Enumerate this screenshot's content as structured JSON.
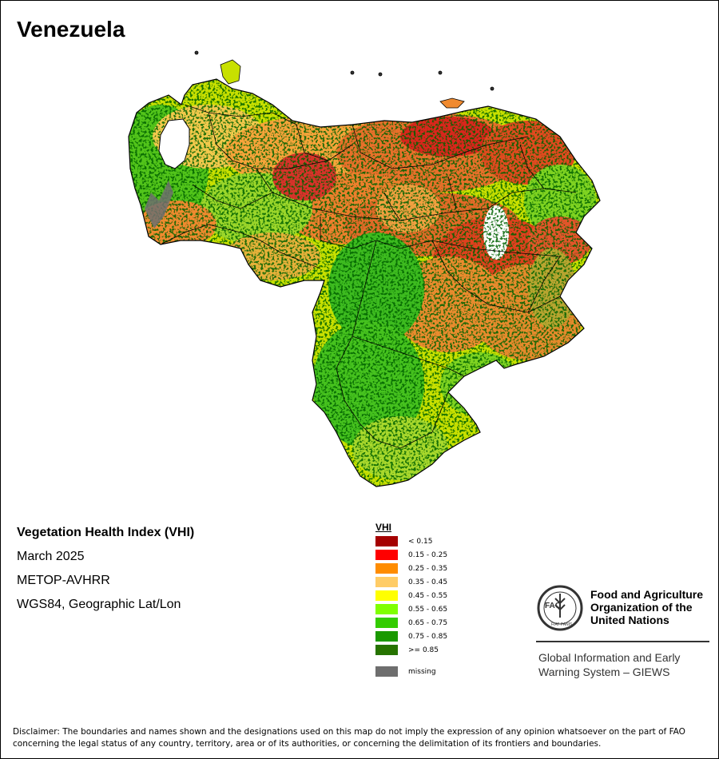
{
  "map": {
    "title": "Venezuela",
    "product": "Vegetation Health Index (VHI)",
    "period": "March 2025",
    "sensor": "METOP-AVHRR",
    "projection": "WGS84, Geographic Lat/Lon"
  },
  "legend": {
    "title": "VHI",
    "classes": [
      {
        "label": "< 0.15",
        "color": "#a50000"
      },
      {
        "label": "0.15 - 0.25",
        "color": "#ff0000"
      },
      {
        "label": "0.25 - 0.35",
        "color": "#ff8c00"
      },
      {
        "label": "0.35 - 0.45",
        "color": "#ffcc66"
      },
      {
        "label": "0.45 - 0.55",
        "color": "#ffff00"
      },
      {
        "label": "0.55 - 0.65",
        "color": "#80ff00"
      },
      {
        "label": "0.65 - 0.75",
        "color": "#33cc00"
      },
      {
        "label": "0.75 - 0.85",
        "color": "#1a9900"
      },
      {
        "label": ">= 0.85",
        "color": "#267300"
      }
    ],
    "missing": {
      "label": "missing",
      "color": "#6e6e6e"
    }
  },
  "logo": {
    "org_lines": [
      "Food and Agriculture",
      "Organization of the",
      "United Nations"
    ],
    "seal_text": "FAO",
    "seal_motto": "FIAT PANIS",
    "giews_lines": [
      "Global Information and Early",
      "Warning System – GIEWS"
    ]
  },
  "disclaimer": "Disclaimer: The boundaries and names shown and the designations used on this map do not imply the expression of any opinion whatsoever on the part of FAO concerning the legal status of any country, territory, area or of its authorities, or concerning the delimitation of its frontiers and boundaries."
}
